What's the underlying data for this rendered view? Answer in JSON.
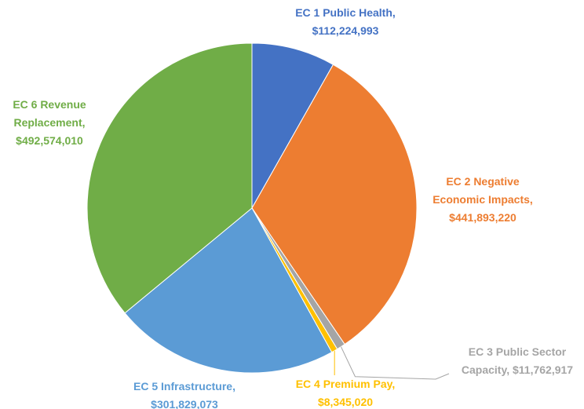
{
  "chart_data": {
    "type": "pie",
    "categories": [
      "EC 1 Public Health,",
      "EC 2 Negative Economic Impacts,",
      "EC 3 Public Sector Capacity,",
      "EC 4 Premium Pay,",
      "EC 5 Infrastructure,",
      "EC 6 Revenue Replacement,"
    ],
    "values": [
      112224993,
      441893220,
      11762917,
      8345020,
      301829073,
      492574010
    ],
    "value_labels": [
      "$112,224,993",
      "$441,893,220",
      "$11,762,917",
      "$8,345,020",
      "$301,829,073",
      "$492,574,010"
    ],
    "colors": [
      "#4472c4",
      "#ed7d31",
      "#a5a5a5",
      "#ffc000",
      "#5b9bd5",
      "#70ad47"
    ]
  }
}
